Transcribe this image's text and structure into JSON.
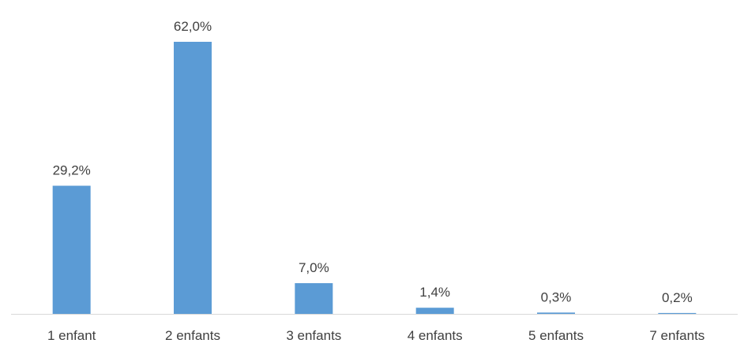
{
  "chart_data": {
    "type": "bar",
    "categories": [
      "1 enfant",
      "2 enfants",
      "3 enfants",
      "4 enfants",
      "5 enfants",
      "7 enfants"
    ],
    "values": [
      29.2,
      62.0,
      7.0,
      1.4,
      0.3,
      0.2
    ],
    "data_labels": [
      "29,2%",
      "62,0%",
      "7,0%",
      "1,4%",
      "0,3%",
      "0,2%"
    ],
    "title": "",
    "xlabel": "",
    "ylabel": "",
    "ylim": [
      0,
      62
    ],
    "grid": false,
    "legend": "none",
    "bar_color": "#5b9bd5",
    "axis_color": "#d9d9d9"
  }
}
